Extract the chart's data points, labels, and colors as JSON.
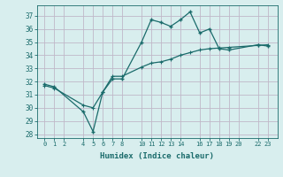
{
  "xlabel": "Humidex (Indice chaleur)",
  "bg_color": "#d8eeee",
  "grid_color": "#c0b8c8",
  "line_color": "#1a6b6b",
  "ylim_min": 27.7,
  "ylim_max": 37.8,
  "xlim_min": -0.8,
  "xlim_max": 24.0,
  "yticks": [
    28,
    29,
    30,
    31,
    32,
    33,
    34,
    35,
    36,
    37
  ],
  "xticks": [
    0,
    1,
    2,
    4,
    5,
    6,
    7,
    8,
    10,
    11,
    12,
    13,
    14,
    16,
    17,
    18,
    19,
    20,
    22,
    23
  ],
  "s1x": [
    0,
    1,
    4,
    5,
    6,
    7,
    8,
    10,
    11,
    12,
    13,
    14,
    15,
    16,
    17,
    18,
    19,
    22,
    23
  ],
  "s1y": [
    31.8,
    31.6,
    29.7,
    28.2,
    31.2,
    32.2,
    32.2,
    35.0,
    36.7,
    36.5,
    36.2,
    36.7,
    37.3,
    35.7,
    36.0,
    34.5,
    34.4,
    34.8,
    34.7
  ],
  "s2x": [
    0,
    1,
    4,
    5,
    6,
    7,
    8,
    10,
    11,
    12,
    13,
    14,
    15,
    16,
    17,
    18,
    19,
    22,
    23
  ],
  "s2y": [
    31.7,
    31.5,
    30.2,
    30.0,
    31.2,
    32.4,
    32.4,
    33.1,
    33.4,
    33.5,
    33.7,
    34.0,
    34.2,
    34.4,
    34.5,
    34.55,
    34.6,
    34.75,
    34.8
  ]
}
